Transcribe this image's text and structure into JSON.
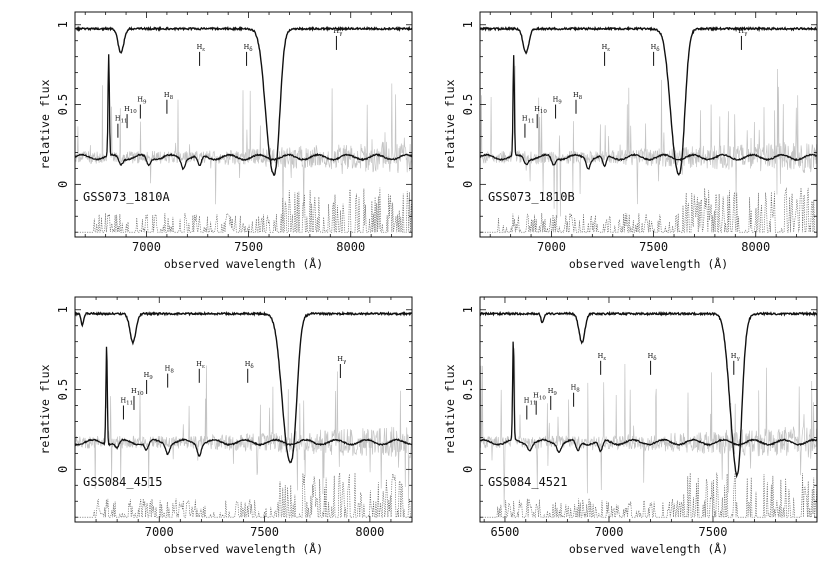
{
  "chart_data": [
    {
      "type": "line",
      "panel_label": "GSS073_1810A",
      "xlabel": "observed wavelength (Å)",
      "ylabel": "relative flux",
      "xlim": [
        6650,
        8300
      ],
      "ylim": [
        -0.33,
        1.08
      ],
      "xticks": [
        7000,
        7500,
        8000
      ],
      "yticks": [
        0,
        0.5,
        1
      ],
      "ytick_labels": [
        "0",
        "0.5",
        "1"
      ],
      "emission_peak": {
        "x": 6815,
        "y": 0.8
      },
      "telluric_dips": [
        {
          "x": 6875,
          "depth": 0.15,
          "width": 14
        },
        {
          "x": 7610,
          "depth": 0.78,
          "width": 30
        },
        {
          "x": 7640,
          "depth": 0.32,
          "width": 18
        }
      ],
      "continuum_level": 0.17,
      "absorption_features": [
        6875,
        7010,
        7180,
        7260
      ],
      "line_markers": [
        {
          "label": "H11",
          "x": 6860,
          "y": 0.38
        },
        {
          "label": "H10",
          "x": 6905,
          "y": 0.44
        },
        {
          "label": "H9",
          "x": 6970,
          "y": 0.5
        },
        {
          "label": "H8",
          "x": 7100,
          "y": 0.53
        },
        {
          "label": "Hε",
          "x": 7260,
          "y": 0.83
        },
        {
          "label": "Hδ",
          "x": 7490,
          "y": 0.83
        },
        {
          "label": "Hγ",
          "x": 7930,
          "y": 0.93
        }
      ]
    },
    {
      "type": "line",
      "panel_label": "GSS073_1810B",
      "xlabel": "observed wavelength (Å)",
      "ylabel": "relative flux",
      "xlim": [
        6650,
        8300
      ],
      "ylim": [
        -0.33,
        1.08
      ],
      "xticks": [
        7000,
        7500,
        8000
      ],
      "yticks": [
        0,
        0.5,
        1
      ],
      "ytick_labels": [
        "0",
        "0.5",
        "1"
      ],
      "emission_peak": {
        "x": 6815,
        "y": 0.8
      },
      "telluric_dips": [
        {
          "x": 6875,
          "depth": 0.15,
          "width": 14
        },
        {
          "x": 7610,
          "depth": 0.78,
          "width": 30
        },
        {
          "x": 7640,
          "depth": 0.32,
          "width": 18
        }
      ],
      "continuum_level": 0.17,
      "absorption_features": [
        6875,
        7010,
        7180,
        7260
      ],
      "line_markers": [
        {
          "label": "H11",
          "x": 6870,
          "y": 0.38
        },
        {
          "label": "H10",
          "x": 6930,
          "y": 0.44
        },
        {
          "label": "H9",
          "x": 7020,
          "y": 0.5
        },
        {
          "label": "H8",
          "x": 7120,
          "y": 0.53
        },
        {
          "label": "Hε",
          "x": 7260,
          "y": 0.83
        },
        {
          "label": "Hδ",
          "x": 7500,
          "y": 0.83
        },
        {
          "label": "Hγ",
          "x": 7930,
          "y": 0.93
        }
      ]
    },
    {
      "type": "line",
      "panel_label": "GSS084_4515",
      "xlabel": "observed wavelength (Å)",
      "ylabel": "relative flux",
      "xlim": [
        6600,
        8200
      ],
      "ylim": [
        -0.33,
        1.08
      ],
      "xticks": [
        7000,
        7500,
        8000
      ],
      "yticks": [
        0,
        0.5,
        1
      ],
      "ytick_labels": [
        "0",
        "0.5",
        "1"
      ],
      "emission_peak": {
        "x": 6750,
        "y": 0.8
      },
      "telluric_dips": [
        {
          "x": 6635,
          "depth": 0.07,
          "width": 6
        },
        {
          "x": 6875,
          "depth": 0.18,
          "width": 14
        },
        {
          "x": 7610,
          "depth": 0.8,
          "width": 30
        },
        {
          "x": 7640,
          "depth": 0.32,
          "width": 18
        }
      ],
      "continuum_level": 0.17,
      "absorption_features": [
        6800,
        6940,
        7040,
        7190
      ],
      "line_markers": [
        {
          "label": "H11",
          "x": 6830,
          "y": 0.4
        },
        {
          "label": "H10",
          "x": 6880,
          "y": 0.46
        },
        {
          "label": "H9",
          "x": 6940,
          "y": 0.56
        },
        {
          "label": "H8",
          "x": 7040,
          "y": 0.6
        },
        {
          "label": "Hε",
          "x": 7190,
          "y": 0.63
        },
        {
          "label": "Hδ",
          "x": 7420,
          "y": 0.63
        },
        {
          "label": "Hγ",
          "x": 7860,
          "y": 0.66
        }
      ]
    },
    {
      "type": "line",
      "panel_label": "GSS084_4521",
      "xlabel": "observed wavelength (Å)",
      "ylabel": "relative flux",
      "xlim": [
        6380,
        8000
      ],
      "ylim": [
        -0.33,
        1.08
      ],
      "xticks": [
        6500,
        7000,
        7500
      ],
      "yticks": [
        0,
        0.5,
        1
      ],
      "ytick_labels": [
        "0",
        "0.5",
        "1"
      ],
      "emission_peak": {
        "x": 6540,
        "y": 0.8
      },
      "telluric_dips": [
        {
          "x": 6680,
          "depth": 0.06,
          "width": 6
        },
        {
          "x": 6870,
          "depth": 0.18,
          "width": 14
        },
        {
          "x": 7605,
          "depth": 0.8,
          "width": 28
        },
        {
          "x": 7625,
          "depth": 0.32,
          "width": 16
        }
      ],
      "continuum_level": 0.17,
      "absorption_features": [
        6620,
        6760,
        6850,
        6960
      ],
      "line_markers": [
        {
          "label": "H11",
          "x": 6605,
          "y": 0.4
        },
        {
          "label": "H10",
          "x": 6650,
          "y": 0.43
        },
        {
          "label": "H9",
          "x": 6720,
          "y": 0.46
        },
        {
          "label": "H8",
          "x": 6830,
          "y": 0.48
        },
        {
          "label": "Hε",
          "x": 6960,
          "y": 0.68
        },
        {
          "label": "Hδ",
          "x": 7200,
          "y": 0.68
        },
        {
          "label": "Hγ",
          "x": 7600,
          "y": 0.68
        }
      ]
    }
  ]
}
